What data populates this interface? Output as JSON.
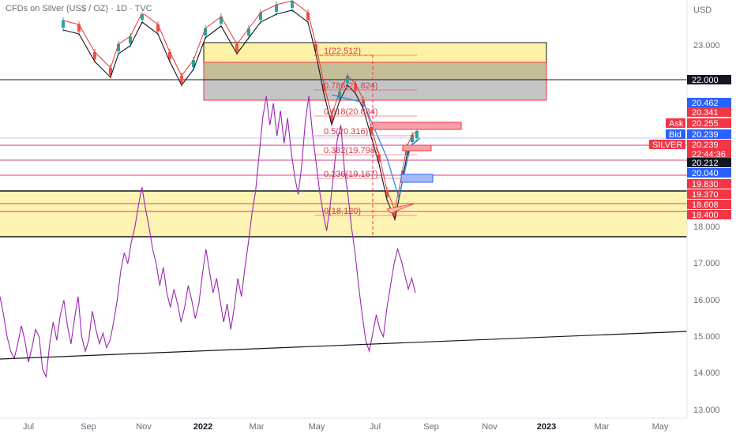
{
  "header": {
    "title": "CFDs on Silver (US$ / OZ) · 1D · TVC"
  },
  "chart_data": {
    "type": "line",
    "axis_currency": "USD",
    "y_ticks": [
      "23.000",
      "18.000",
      "17.000",
      "16.000",
      "15.000",
      "14.000",
      "13.000"
    ],
    "x_ticks": [
      {
        "label": "Jul",
        "bold": false
      },
      {
        "label": "Sep",
        "bold": false
      },
      {
        "label": "Nov",
        "bold": false
      },
      {
        "label": "2022",
        "bold": true
      },
      {
        "label": "Mar",
        "bold": false
      },
      {
        "label": "May",
        "bold": false
      },
      {
        "label": "Jul",
        "bold": false
      },
      {
        "label": "Sep",
        "bold": false
      },
      {
        "label": "Nov",
        "bold": false
      },
      {
        "label": "2023",
        "bold": true
      },
      {
        "label": "Mar",
        "bold": false
      },
      {
        "label": "May",
        "bold": false
      }
    ],
    "fib_levels": [
      {
        "label": "1(22.512)",
        "price": 22.512
      },
      {
        "label": "0.786(21.824)",
        "price": 21.824
      },
      {
        "label": "0.618(20.884)",
        "price": 20.884
      },
      {
        "label": "0.5(20.316)",
        "price": 20.316
      },
      {
        "label": "0.382(19.798)",
        "price": 19.798
      },
      {
        "label": "0.236(19.167)",
        "price": 19.167
      },
      {
        "label": "0(18.120)",
        "price": 18.12
      }
    ],
    "price_tags": [
      {
        "label": "22.000",
        "price": 22.0,
        "bg": "#131722",
        "fg": "#ffffff"
      },
      {
        "label": "20.462",
        "price": 20.462,
        "bg": "#2962ff",
        "fg": "#ffffff"
      },
      {
        "label": "20.341",
        "price": 20.341,
        "bg": "#f23645",
        "fg": "#ffffff"
      },
      {
        "label": "20.255",
        "price": 20.255,
        "bg": "#f23645",
        "fg": "#ffffff",
        "prefix": "Ask"
      },
      {
        "label": "20.239",
        "price": 20.12,
        "bg": "#2962ff",
        "fg": "#ffffff",
        "prefix": "Bid"
      },
      {
        "label": "20.239",
        "price": 19.96,
        "bg": "#f23645",
        "fg": "#ffffff",
        "prefix": "SILVER"
      },
      {
        "label": "22:44:36",
        "price": 19.78,
        "bg": "#f23645",
        "fg": "#ffffff"
      },
      {
        "label": "20.212",
        "price": 19.58,
        "bg": "#131722",
        "fg": "#ffffff"
      },
      {
        "label": "20.040",
        "price": 19.32,
        "bg": "#2962ff",
        "fg": "#ffffff"
      },
      {
        "label": "19.830",
        "price": 19.0,
        "bg": "#f23645",
        "fg": "#ffffff"
      },
      {
        "label": "19.370",
        "price": 18.76,
        "bg": "#f23645",
        "fg": "#ffffff"
      },
      {
        "label": "18.608",
        "price": 18.5,
        "bg": "#f23645",
        "fg": "#ffffff"
      },
      {
        "label": "18.400",
        "price": 18.25,
        "bg": "#f23645",
        "fg": "#ffffff"
      }
    ],
    "oscillator_series": [
      16.1,
      15.6,
      15.0,
      14.6,
      14.4,
      14.8,
      15.3,
      14.9,
      14.3,
      14.7,
      15.2,
      15.0,
      14.1,
      13.9,
      14.8,
      15.4,
      14.9,
      15.6,
      16.0,
      15.3,
      14.8,
      15.5,
      16.1,
      15.0,
      14.6,
      14.9,
      15.7,
      15.2,
      14.8,
      15.1,
      14.7,
      14.9,
      15.4,
      16.0,
      16.8,
      17.3,
      17.0,
      17.6,
      18.0,
      18.6,
      19.1,
      18.5,
      18.0,
      17.4,
      17.0,
      16.4,
      16.9,
      16.2,
      15.8,
      16.3,
      15.9,
      15.4,
      15.8,
      16.4,
      16.0,
      15.5,
      15.9,
      16.7,
      17.4,
      16.8,
      16.2,
      16.6,
      16.0,
      15.4,
      15.9,
      15.2,
      15.8,
      16.6,
      16.1,
      16.9,
      17.6,
      18.4,
      19.0,
      20.0,
      21.0,
      21.6,
      20.8,
      21.4,
      20.5,
      21.2,
      20.3,
      21.0,
      20.1,
      19.4,
      18.9,
      19.7,
      20.9,
      21.6,
      20.6,
      19.8,
      19.0,
      18.4,
      17.9,
      18.6,
      19.5,
      20.4,
      20.8,
      19.6,
      18.9,
      18.0,
      17.3,
      16.4,
      15.6,
      14.9,
      14.6,
      15.1,
      15.6,
      15.2,
      15.0,
      15.8,
      16.4,
      17.0,
      17.4,
      17.1,
      16.7,
      16.3,
      16.6,
      16.2
    ]
  }
}
